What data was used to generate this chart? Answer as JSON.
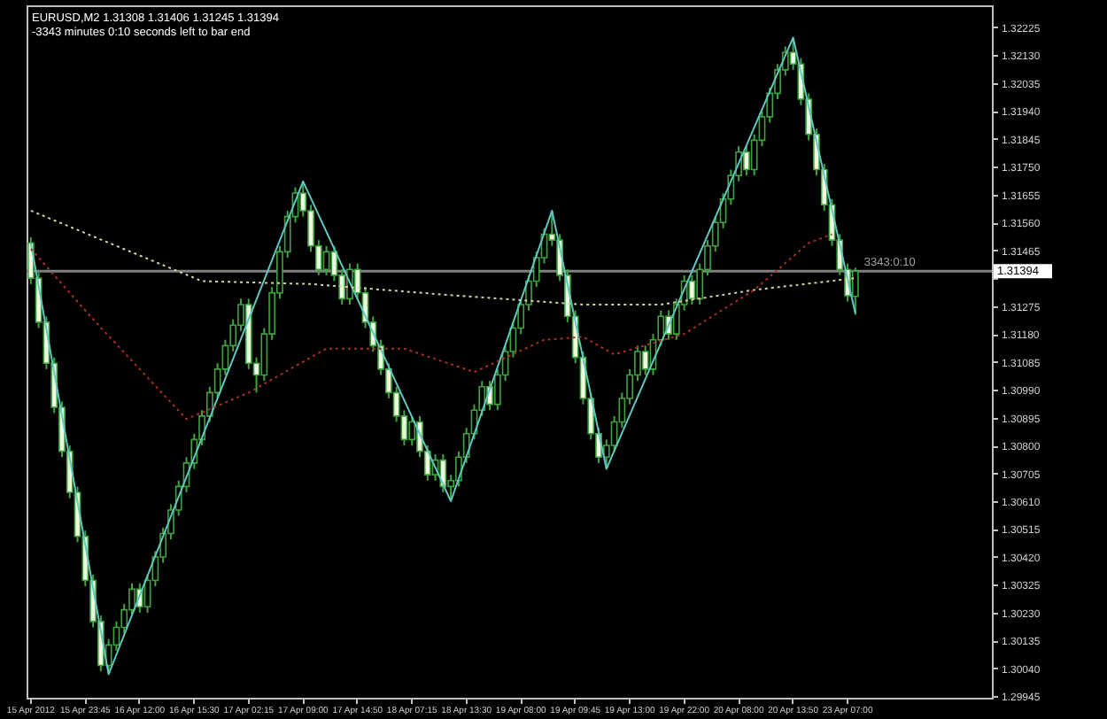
{
  "chart_data": {
    "type": "candlestick",
    "title": "EURUSD,M2  1.31308 1.31406 1.31245 1.31394",
    "subtitle": "-3343 minutes 0:10 seconds left to bar end",
    "annotations": [
      {
        "text": "3343:0:10",
        "y": 1.31394
      }
    ],
    "categories": [
      "15 Apr 2012",
      null,
      null,
      null,
      null,
      null,
      null,
      "15 Apr 23:45",
      null,
      null,
      null,
      null,
      null,
      null,
      "16 Apr 12:00",
      null,
      null,
      null,
      null,
      null,
      null,
      "16 Apr 15:30",
      null,
      null,
      null,
      null,
      null,
      null,
      "17 Apr 02:15",
      null,
      null,
      null,
      null,
      null,
      null,
      "17 Apr 09:00",
      null,
      null,
      null,
      null,
      null,
      null,
      "17 Apr 14:50",
      null,
      null,
      null,
      null,
      null,
      null,
      "18 Apr 07:15",
      null,
      null,
      null,
      null,
      null,
      null,
      "18 Apr 13:30",
      null,
      null,
      null,
      null,
      null,
      null,
      "19 Apr 08:00",
      null,
      null,
      null,
      null,
      null,
      null,
      "19 Apr 09:45",
      null,
      null,
      null,
      null,
      null,
      null,
      "19 Apr 13:00",
      null,
      null,
      null,
      null,
      null,
      null,
      "19 Apr 22:00",
      null,
      null,
      null,
      null,
      null,
      null,
      "20 Apr 08:00",
      null,
      null,
      null,
      null,
      null,
      null,
      "20 Apr 13:50",
      null,
      null,
      null,
      null,
      null,
      null,
      "23 Apr 07:00",
      null,
      null,
      null,
      null,
      null,
      null,
      null,
      null,
      null,
      null,
      null,
      null,
      null,
      null,
      null,
      null,
      null,
      null
    ],
    "color": "#3fa33f",
    "colors": [
      "#eefbe0",
      "#eefbe0",
      "#eefbe0",
      "#eefbe0",
      "#eefbe0",
      "#eefbe0",
      "#eefbe0",
      "#eefbe0",
      "#eefbe0",
      "#eefbe0",
      "#000000",
      "#000000",
      "#000000",
      "#000000",
      "#eefbe0",
      "#000000",
      "#000000",
      "#000000",
      "#000000",
      "#000000",
      "#000000",
      "#000000",
      "#000000",
      "#000000",
      "#000000",
      "#000000",
      "#000000",
      "#000000",
      "#eefbe0",
      "#eefbe0",
      "#000000",
      "#000000",
      "#000000",
      "#000000",
      "#000000",
      "#eefbe0",
      "#eefbe0",
      "#eefbe0",
      "#000000",
      "#eefbe0",
      "#eefbe0",
      "#000000",
      "#eefbe0",
      "#eefbe0",
      "#eefbe0",
      "#eefbe0",
      "#eefbe0",
      "#eefbe0",
      "#eefbe0",
      "#000000",
      "#eefbe0",
      "#eefbe0",
      "#000000",
      "#eefbe0",
      "#000000",
      "#000000",
      "#000000",
      "#000000",
      "#000000",
      "#eefbe0",
      "#000000",
      "#000000",
      "#000000",
      "#000000",
      "#000000",
      "#000000",
      "#000000",
      "#eefbe0",
      "#eefbe0",
      "#eefbe0",
      "#eefbe0",
      "#eefbe0",
      "#eefbe0",
      "#eefbe0",
      "#000000",
      "#000000",
      "#000000",
      "#000000",
      "#000000",
      "#eefbe0",
      "#000000",
      "#000000",
      "#eefbe0",
      "#000000",
      "#000000",
      "#eefbe0",
      "#000000",
      "#000000",
      "#000000",
      "#000000",
      "#000000",
      "#000000",
      "#eefbe0",
      "#000000",
      "#000000",
      "#000000",
      "#000000",
      "#000000",
      "#eefbe0",
      "#eefbe0",
      "#eefbe0",
      "#eefbe0",
      "#eefbe0",
      "#eefbe0",
      "#eefbe0",
      "#eefbe0",
      "#000000",
      null,
      null,
      null,
      null,
      null,
      null,
      null,
      null,
      null,
      null,
      null,
      null,
      null,
      null,
      null,
      null,
      null
    ],
    "ohlc": [
      [
        1.3149,
        1.3151,
        1.3135,
        1.3137
      ],
      [
        1.3137,
        1.3139,
        1.312,
        1.3122
      ],
      [
        1.3122,
        1.3124,
        1.3106,
        1.3108
      ],
      [
        1.3108,
        1.311,
        1.3091,
        1.3093
      ],
      [
        1.3093,
        1.3095,
        1.3076,
        1.3078
      ],
      [
        1.3078,
        1.308,
        1.3062,
        1.3064
      ],
      [
        1.3064,
        1.3066,
        1.3047,
        1.3049
      ],
      [
        1.3049,
        1.3051,
        1.3032,
        1.3034
      ],
      [
        1.3034,
        1.3036,
        1.3018,
        1.302
      ],
      [
        1.302,
        1.3022,
        1.3003,
        1.3005
      ],
      [
        1.3005,
        1.3014,
        1.3002,
        1.3012
      ],
      [
        1.3012,
        1.302,
        1.301,
        1.3018
      ],
      [
        1.3018,
        1.3026,
        1.3016,
        1.3024
      ],
      [
        1.3024,
        1.3033,
        1.3022,
        1.3031
      ],
      [
        1.3031,
        1.3033,
        1.3023,
        1.3025
      ],
      [
        1.3025,
        1.3036,
        1.3023,
        1.3034
      ],
      [
        1.3034,
        1.3044,
        1.3032,
        1.3042
      ],
      [
        1.3042,
        1.3052,
        1.304,
        1.305
      ],
      [
        1.305,
        1.306,
        1.3048,
        1.3058
      ],
      [
        1.3058,
        1.3068,
        1.3056,
        1.3066
      ],
      [
        1.3066,
        1.3076,
        1.3064,
        1.3074
      ],
      [
        1.3074,
        1.3084,
        1.3072,
        1.3082
      ],
      [
        1.3082,
        1.3092,
        1.308,
        1.309
      ],
      [
        1.309,
        1.31,
        1.3088,
        1.3098
      ],
      [
        1.3098,
        1.3108,
        1.3096,
        1.3106
      ],
      [
        1.3106,
        1.3116,
        1.3104,
        1.3114
      ],
      [
        1.3114,
        1.3123,
        1.3112,
        1.3121
      ],
      [
        1.3121,
        1.313,
        1.3119,
        1.3128
      ],
      [
        1.3128,
        1.313,
        1.3106,
        1.3108
      ],
      [
        1.3108,
        1.311,
        1.3098,
        1.3104
      ],
      [
        1.3104,
        1.312,
        1.3102,
        1.3118
      ],
      [
        1.3118,
        1.3134,
        1.3116,
        1.3132
      ],
      [
        1.3132,
        1.3148,
        1.313,
        1.3146
      ],
      [
        1.3146,
        1.316,
        1.3144,
        1.3158
      ],
      [
        1.3158,
        1.3168,
        1.3156,
        1.3166
      ],
      [
        1.3166,
        1.317,
        1.3158,
        1.316
      ],
      [
        1.316,
        1.3162,
        1.3146,
        1.3148
      ],
      [
        1.3148,
        1.315,
        1.3138,
        1.314
      ],
      [
        1.314,
        1.3148,
        1.3138,
        1.3146
      ],
      [
        1.3146,
        1.3148,
        1.3136,
        1.3138
      ],
      [
        1.3138,
        1.314,
        1.3128,
        1.313
      ],
      [
        1.313,
        1.3142,
        1.3128,
        1.314
      ],
      [
        1.314,
        1.3142,
        1.313,
        1.3132
      ],
      [
        1.3132,
        1.3134,
        1.312,
        1.3122
      ],
      [
        1.3122,
        1.3124,
        1.3112,
        1.3114
      ],
      [
        1.3114,
        1.3116,
        1.3104,
        1.3106
      ],
      [
        1.3106,
        1.3108,
        1.3096,
        1.3098
      ],
      [
        1.3098,
        1.31,
        1.3088,
        1.309
      ],
      [
        1.309,
        1.3092,
        1.308,
        1.3082
      ],
      [
        1.3082,
        1.309,
        1.308,
        1.3088
      ],
      [
        1.3088,
        1.309,
        1.3076,
        1.3078
      ],
      [
        1.3078,
        1.308,
        1.3068,
        1.307
      ],
      [
        1.307,
        1.3077,
        1.3068,
        1.3075
      ],
      [
        1.3075,
        1.3077,
        1.3064,
        1.3066
      ],
      [
        1.3066,
        1.307,
        1.3061,
        1.3068
      ],
      [
        1.3068,
        1.3078,
        1.3066,
        1.3076
      ],
      [
        1.3076,
        1.3086,
        1.3074,
        1.3084
      ],
      [
        1.3084,
        1.3094,
        1.3082,
        1.3092
      ],
      [
        1.3092,
        1.3102,
        1.309,
        1.31
      ],
      [
        1.31,
        1.3102,
        1.3092,
        1.3094
      ],
      [
        1.3094,
        1.3106,
        1.3092,
        1.3104
      ],
      [
        1.3104,
        1.3114,
        1.3102,
        1.3112
      ],
      [
        1.3112,
        1.3122,
        1.311,
        1.312
      ],
      [
        1.312,
        1.313,
        1.3118,
        1.3128
      ],
      [
        1.3128,
        1.3138,
        1.3126,
        1.3136
      ],
      [
        1.3136,
        1.3146,
        1.3134,
        1.3144
      ],
      [
        1.3144,
        1.3154,
        1.3142,
        1.3152
      ],
      [
        1.3152,
        1.316,
        1.3148,
        1.315
      ],
      [
        1.315,
        1.3152,
        1.3136,
        1.3138
      ],
      [
        1.3138,
        1.314,
        1.3122,
        1.3124
      ],
      [
        1.3124,
        1.3126,
        1.3108,
        1.311
      ],
      [
        1.311,
        1.3112,
        1.3094,
        1.3096
      ],
      [
        1.3096,
        1.3098,
        1.3082,
        1.3084
      ],
      [
        1.3084,
        1.3086,
        1.3074,
        1.3076
      ],
      [
        1.3076,
        1.3082,
        1.3072,
        1.308
      ],
      [
        1.308,
        1.309,
        1.3078,
        1.3088
      ],
      [
        1.3088,
        1.3098,
        1.3086,
        1.3096
      ],
      [
        1.3096,
        1.3106,
        1.3094,
        1.3104
      ],
      [
        1.3104,
        1.3114,
        1.3102,
        1.3112
      ],
      [
        1.3112,
        1.3114,
        1.3104,
        1.3106
      ],
      [
        1.3106,
        1.3118,
        1.3104,
        1.3116
      ],
      [
        1.3116,
        1.3126,
        1.3114,
        1.3124
      ],
      [
        1.3124,
        1.3126,
        1.3116,
        1.3118
      ],
      [
        1.3118,
        1.313,
        1.3116,
        1.3128
      ],
      [
        1.3128,
        1.3138,
        1.3126,
        1.3136
      ],
      [
        1.3136,
        1.3138,
        1.3128,
        1.313
      ],
      [
        1.313,
        1.3142,
        1.3128,
        1.314
      ],
      [
        1.314,
        1.315,
        1.3138,
        1.3148
      ],
      [
        1.3148,
        1.3158,
        1.3146,
        1.3156
      ],
      [
        1.3156,
        1.3166,
        1.3154,
        1.3164
      ],
      [
        1.3164,
        1.3174,
        1.3162,
        1.3172
      ],
      [
        1.3172,
        1.3182,
        1.317,
        1.318
      ],
      [
        1.318,
        1.3182,
        1.3172,
        1.3174
      ],
      [
        1.3174,
        1.3186,
        1.3172,
        1.3184
      ],
      [
        1.3184,
        1.3194,
        1.3182,
        1.3192
      ],
      [
        1.3192,
        1.3202,
        1.319,
        1.32
      ],
      [
        1.32,
        1.321,
        1.3198,
        1.3208
      ],
      [
        1.3208,
        1.3216,
        1.3206,
        1.3214
      ],
      [
        1.3214,
        1.3219,
        1.3208,
        1.321
      ],
      [
        1.321,
        1.3212,
        1.3196,
        1.3198
      ],
      [
        1.3198,
        1.32,
        1.3184,
        1.3186
      ],
      [
        1.3186,
        1.3188,
        1.3172,
        1.3174
      ],
      [
        1.3174,
        1.3176,
        1.316,
        1.3162
      ],
      [
        1.3162,
        1.3164,
        1.3148,
        1.315
      ],
      [
        1.315,
        1.3152,
        1.3138,
        1.314
      ],
      [
        1.314,
        1.3142,
        1.3129,
        1.3131
      ],
      [
        1.31308,
        1.31406,
        1.31245,
        1.31394
      ],
      null,
      null,
      null,
      null,
      null,
      null,
      null,
      null,
      null,
      null,
      null,
      null,
      null,
      null,
      null,
      null,
      null
    ],
    "series": [
      {
        "type": "line",
        "color": "#5fc8c0",
        "line_style": "solid",
        "values": [
          1.3149,
          null,
          null,
          null,
          null,
          null,
          null,
          null,
          null,
          null,
          1.3002,
          null,
          null,
          null,
          null,
          null,
          null,
          null,
          null,
          null,
          null,
          null,
          null,
          null,
          null,
          null,
          null,
          null,
          null,
          null,
          null,
          null,
          null,
          null,
          null,
          1.317,
          null,
          null,
          null,
          null,
          null,
          null,
          null,
          null,
          null,
          null,
          null,
          null,
          null,
          null,
          null,
          null,
          null,
          null,
          1.3061,
          null,
          null,
          null,
          null,
          null,
          null,
          null,
          null,
          null,
          null,
          null,
          null,
          1.316,
          null,
          null,
          null,
          null,
          null,
          null,
          1.3072,
          null,
          null,
          null,
          null,
          null,
          null,
          null,
          null,
          null,
          null,
          null,
          null,
          null,
          null,
          null,
          null,
          null,
          null,
          null,
          null,
          null,
          null,
          null,
          1.3219,
          null,
          null,
          null,
          null,
          null,
          null,
          null,
          1.3125,
          null,
          null,
          null,
          null,
          null,
          null,
          null,
          null,
          null,
          null,
          null,
          null,
          null,
          null,
          null,
          null,
          null
        ]
      },
      {
        "type": "line",
        "color": "#d8d0a0",
        "line_style": "dotted",
        "values": [
          1.316,
          null,
          null,
          null,
          null,
          null,
          null,
          null,
          null,
          null,
          null,
          null,
          null,
          null,
          null,
          null,
          null,
          null,
          null,
          null,
          null,
          null,
          1.3136,
          null,
          null,
          null,
          null,
          null,
          null,
          null,
          null,
          null,
          null,
          null,
          null,
          null,
          1.3135,
          null,
          null,
          null,
          null,
          null,
          null,
          null,
          null,
          null,
          null,
          null,
          null,
          null,
          null,
          null,
          null,
          null,
          null,
          1.3131,
          null,
          null,
          null,
          null,
          null,
          null,
          null,
          null,
          null,
          null,
          null,
          null,
          null,
          null,
          null,
          1.3128,
          null,
          null,
          null,
          null,
          null,
          null,
          null,
          null,
          null,
          1.3128,
          null,
          null,
          null,
          null,
          null,
          null,
          null,
          null,
          null,
          null,
          null,
          1.3133,
          null,
          null,
          null,
          null,
          null,
          null,
          null,
          null,
          null,
          null,
          null,
          null,
          1.3137,
          null,
          null,
          null,
          null,
          null,
          null,
          null,
          null,
          null,
          null,
          null,
          null,
          null,
          null,
          null,
          null,
          null
        ]
      },
      {
        "type": "line",
        "color": "#a83020",
        "line_style": "dotted",
        "values": [
          1.3147,
          null,
          null,
          null,
          null,
          null,
          null,
          null,
          1.3123,
          null,
          null,
          null,
          null,
          null,
          null,
          null,
          null,
          null,
          null,
          null,
          1.3089,
          null,
          null,
          null,
          null,
          null,
          null,
          null,
          1.3098,
          null,
          null,
          null,
          null,
          null,
          null,
          null,
          null,
          null,
          1.3113,
          null,
          null,
          null,
          null,
          null,
          null,
          null,
          null,
          null,
          1.3113,
          null,
          null,
          null,
          null,
          null,
          null,
          null,
          null,
          1.3105,
          null,
          null,
          null,
          null,
          null,
          null,
          null,
          null,
          1.3116,
          null,
          null,
          null,
          null,
          1.3117,
          null,
          null,
          null,
          1.3111,
          null,
          null,
          null,
          null,
          null,
          null,
          null,
          null,
          1.3118,
          null,
          null,
          null,
          null,
          null,
          null,
          null,
          null,
          1.3133,
          null,
          null,
          null,
          null,
          null,
          null,
          1.3149,
          null,
          null,
          1.3152,
          null,
          null,
          null,
          null,
          null,
          null,
          null,
          null,
          null,
          null,
          null,
          null,
          null,
          null,
          null,
          null,
          null,
          null,
          null,
          null
        ]
      }
    ],
    "ref_lines": [
      {
        "axis": "y",
        "value": 1.31394,
        "label": "1.31394",
        "color": "#808080"
      }
    ],
    "ylim": [
      1.2994,
      1.323
    ],
    "yticks": [
      1.29945,
      {
        "value": 1.3004,
        "label": "1.30040"
      },
      1.30135,
      {
        "value": 1.3023,
        "label": "1.30230"
      },
      1.30325,
      {
        "value": 1.3042,
        "label": "1.30420"
      },
      1.30515,
      {
        "value": 1.3061,
        "label": "1.30610"
      },
      1.30705,
      {
        "value": 1.308,
        "label": "1.30800"
      },
      1.30895,
      {
        "value": 1.3099,
        "label": "1.30990"
      },
      1.31085,
      {
        "value": 1.3118,
        "label": "1.31180"
      },
      1.31275,
      {
        "value": 1.3137,
        "label": null
      },
      1.31465,
      {
        "value": 1.3156,
        "label": "1.31560"
      },
      1.31655,
      {
        "value": 1.3175,
        "label": "1.31750"
      },
      1.31845,
      {
        "value": 1.3194,
        "label": "1.31940"
      },
      1.32035,
      {
        "value": 1.3213,
        "label": "1.32130"
      },
      1.32225
    ],
    "grid": false
  }
}
